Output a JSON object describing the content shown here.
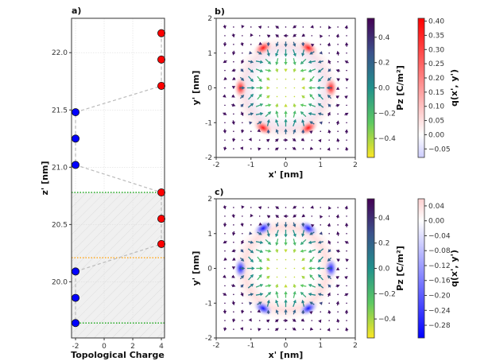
{
  "chart_data": [
    {
      "type": "scatter",
      "title": "a)",
      "xlabel": "Topological Charge",
      "ylabel": "z' [nm]",
      "xlim": [
        -2.28,
        4.22
      ],
      "ylim": [
        19.51,
        22.3
      ],
      "xticks": [
        -2,
        0,
        2,
        4
      ],
      "yticks": [
        20.0,
        20.5,
        21.0,
        21.5,
        22.0
      ],
      "grid": true,
      "series": [
        {
          "color": "#ff0000",
          "x": [
            4,
            4,
            4,
            4,
            4,
            4
          ],
          "y": [
            22.17,
            21.94,
            21.71,
            20.78,
            20.55,
            20.33
          ]
        },
        {
          "color": "#0000ff",
          "x": [
            -2,
            -2,
            -2,
            -2,
            -2,
            -2
          ],
          "y": [
            21.48,
            21.25,
            21.02,
            20.09,
            19.86,
            19.64
          ]
        }
      ],
      "connecting_line_order": [
        [
          4,
          22.17
        ],
        [
          4,
          21.94
        ],
        [
          4,
          21.71
        ],
        [
          -2,
          21.48
        ],
        [
          -2,
          21.25
        ],
        [
          -2,
          21.02
        ],
        [
          4,
          20.78
        ],
        [
          4,
          20.55
        ],
        [
          4,
          20.33
        ],
        [
          -2,
          20.09
        ],
        [
          -2,
          19.86
        ],
        [
          -2,
          19.64
        ]
      ],
      "hlines": [
        {
          "y": 20.78,
          "color": "#22aa22",
          "style": "dotted"
        },
        {
          "y": 20.21,
          "color": "#ffaa22",
          "style": "dotted"
        },
        {
          "y": 19.64,
          "color": "#22aa22",
          "style": "dotted"
        }
      ],
      "shaded_region": {
        "y": [
          19.51,
          20.78
        ],
        "color": "#f0f0f0",
        "hatch": "diagonal"
      }
    },
    {
      "type": "heatmap",
      "title": "b)",
      "xlabel": "x' [nm]",
      "ylabel": "y' [nm]",
      "xlim": [
        -2,
        2
      ],
      "ylim": [
        -2,
        2
      ],
      "xticks": [
        -2,
        -1,
        0,
        1,
        2
      ],
      "yticks": [
        -2,
        -1,
        0,
        1,
        2
      ],
      "q_peaks": [
        [
          1.3,
          0,
          0.4
        ],
        [
          0.65,
          1.15,
          0.4
        ],
        [
          -0.65,
          1.15,
          0.4
        ],
        [
          -1.3,
          0,
          0.4
        ],
        [
          -0.65,
          -1.15,
          0.4
        ],
        [
          0.65,
          -1.15,
          0.4
        ]
      ],
      "q_sign": 1,
      "colorbar_pz": {
        "label": "Pz [C/m²]",
        "label_main": "P",
        "label_sub": "z",
        "label_unit": " [C/m²]",
        "range": [
          -0.55,
          0.55
        ],
        "ticks": [
          0.4,
          0.2,
          0.0,
          -0.2,
          -0.4
        ],
        "tick_labels": [
          "0.4",
          "0.2",
          "0.0",
          "−0.2",
          "−0.4"
        ],
        "colormap": "viridis"
      },
      "colorbar_q": {
        "label": "q(x', y')",
        "range": [
          -0.08,
          0.41
        ],
        "ticks": [
          0.4,
          0.35,
          0.3,
          0.25,
          0.2,
          0.15,
          0.1,
          0.05,
          0.0,
          -0.05
        ],
        "tick_labels": [
          "0.40",
          "0.35",
          "0.30",
          "0.25",
          "0.20",
          "0.15",
          "0.10",
          "0.05",
          "0.00",
          "−0.05"
        ],
        "colormap": "bwr"
      }
    },
    {
      "type": "heatmap",
      "title": "c)",
      "xlabel": "x' [nm]",
      "ylabel": "y' [nm]",
      "xlim": [
        -2,
        2
      ],
      "ylim": [
        -2,
        2
      ],
      "xticks": [
        -2,
        -1,
        0,
        1,
        2
      ],
      "yticks": [
        -2,
        -1,
        0,
        1,
        2
      ],
      "q_peaks": [
        [
          1.3,
          0,
          -0.3
        ],
        [
          0.65,
          1.15,
          -0.3
        ],
        [
          -0.65,
          1.15,
          -0.3
        ],
        [
          -1.3,
          0,
          -0.3
        ],
        [
          -0.65,
          -1.15,
          -0.3
        ],
        [
          0.65,
          -1.15,
          -0.3
        ]
      ],
      "q_sign": -1,
      "colorbar_pz": {
        "label": "Pz [C/m²]",
        "label_main": "P",
        "label_sub": "z",
        "label_unit": " [C/m²]",
        "range": [
          -0.55,
          0.55
        ],
        "ticks": [
          0.4,
          0.2,
          0.0,
          -0.2,
          -0.4
        ],
        "tick_labels": [
          "0.4",
          "0.2",
          "0.0",
          "−0.2",
          "−0.4"
        ],
        "colormap": "viridis"
      },
      "colorbar_q": {
        "label": "q(x', y')",
        "range": [
          -0.314,
          0.059
        ],
        "ticks": [
          0.04,
          0.0,
          -0.04,
          -0.08,
          -0.12,
          -0.16,
          -0.2,
          -0.24,
          -0.28
        ],
        "tick_labels": [
          "0.04",
          "0.00",
          "−0.04",
          "−0.08",
          "−0.12",
          "−0.16",
          "−0.20",
          "−0.24",
          "−0.28"
        ],
        "colormap": "bwr"
      }
    }
  ]
}
